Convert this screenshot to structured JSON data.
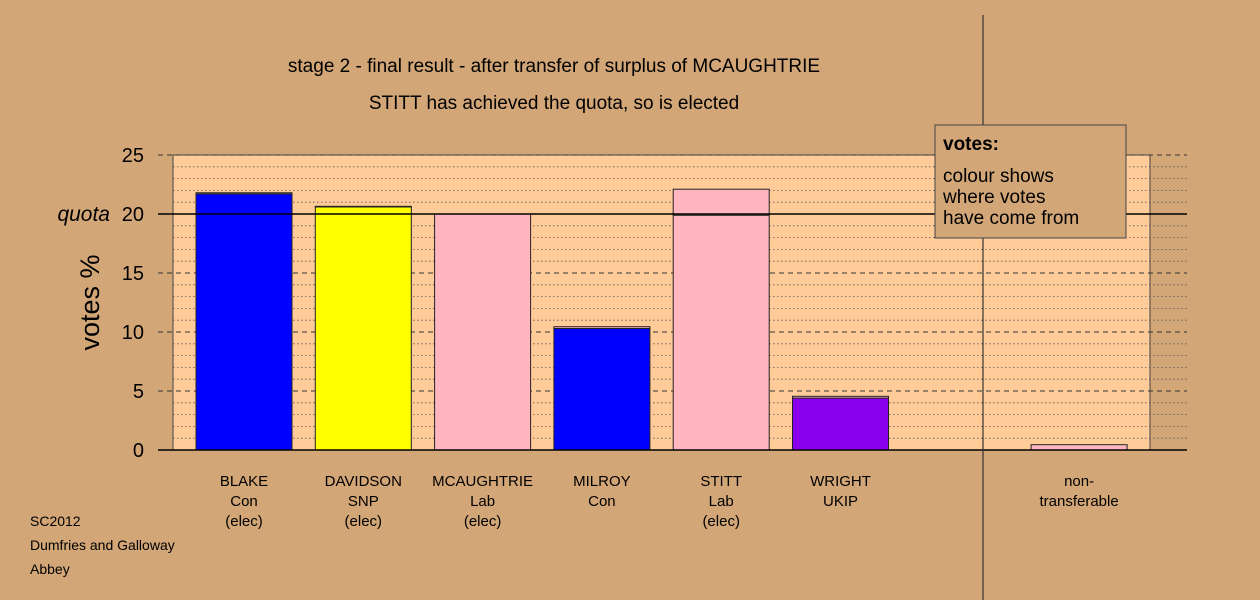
{
  "chart_data": {
    "type": "bar",
    "title": "stage 2 - final result - after transfer of surplus of MCAUGHTRIE",
    "subtitle": "STITT has achieved the quota, so is elected",
    "ylabel": "votes %",
    "ylim": [
      0,
      25
    ],
    "yticks": [
      0,
      5,
      10,
      15,
      20,
      25
    ],
    "quota": 20,
    "quota_label": "quota",
    "grid": true,
    "categories": [
      [
        "BLAKE",
        "Con",
        "(elec)"
      ],
      [
        "DAVIDSON",
        "SNP",
        "(elec)"
      ],
      [
        "MCAUGHTRIE",
        "Lab",
        "(elec)"
      ],
      [
        "MILROY",
        "Con"
      ],
      [
        "STITT",
        "Lab",
        "(elec)"
      ],
      [
        "WRIGHT",
        "UKIP"
      ],
      [
        "non-",
        "transferable"
      ]
    ],
    "bars": [
      {
        "segments": [
          {
            "value": 21.7,
            "color": "#0000ff"
          },
          {
            "value": 0.1,
            "color": "#ffb6c1"
          }
        ]
      },
      {
        "segments": [
          {
            "value": 20.6,
            "color": "#ffff00"
          },
          {
            "value": 0.05,
            "color": "#ffb6c1"
          }
        ]
      },
      {
        "segments": [
          {
            "value": 20.0,
            "color": "#ffb6c1"
          }
        ]
      },
      {
        "segments": [
          {
            "value": 10.3,
            "color": "#0000ff"
          },
          {
            "value": 0.15,
            "color": "#ffb6c1"
          }
        ]
      },
      {
        "segments": [
          {
            "value": 19.9,
            "color": "#ffb6c1"
          },
          {
            "value": 2.2,
            "color": "#ffb6c1"
          }
        ]
      },
      {
        "segments": [
          {
            "value": 4.4,
            "color": "#8800ee"
          },
          {
            "value": 0.15,
            "color": "#ffb6c1"
          }
        ]
      },
      {
        "segments": [
          {
            "value": 0.45,
            "color": "#ffb6c1"
          }
        ]
      }
    ],
    "legend": {
      "title": "votes:",
      "lines": [
        "colour shows",
        "where votes",
        "have come from"
      ],
      "placement": "top-right"
    },
    "colors": {
      "background": "#d2a677",
      "plot_background": "#ffcc99",
      "grid": "#555555"
    }
  },
  "footer": {
    "line1": "SC2012",
    "line2": "Dumfries and Galloway",
    "line3": "Abbey"
  }
}
